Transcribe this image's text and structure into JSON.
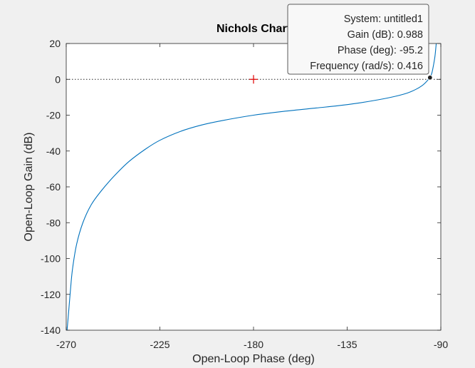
{
  "chart_data": {
    "type": "line",
    "title": "Nichols Chart",
    "xlabel": "Open-Loop Phase (deg)",
    "ylabel": "Open-Loop Gain (dB)",
    "xlim": [
      -270,
      -90
    ],
    "ylim": [
      -140,
      20
    ],
    "xticks": [
      -270,
      -225,
      -180,
      -135,
      -90
    ],
    "yticks": [
      20,
      0,
      -20,
      -40,
      -60,
      -80,
      -100,
      -120,
      -140
    ],
    "grid": false,
    "series": [
      {
        "color": "#0072bd",
        "x": [
          -269.6,
          -269.0,
          -268.0,
          -267.0,
          -265.0,
          -262.0,
          -258.0,
          -253.0,
          -247.0,
          -240.0,
          -232.0,
          -225.0,
          -215.0,
          -205.0,
          -195.0,
          -180.0,
          -165.0,
          -150.0,
          -140.0,
          -130.0,
          -120.0,
          -112.0,
          -106.0,
          -102.0,
          -99.0,
          -97.0,
          -95.8,
          -95.2,
          -94.3,
          -93.5,
          -92.8,
          -92.2
        ],
        "y": [
          -140,
          -132,
          -118,
          -106,
          -92,
          -80,
          -70,
          -62,
          -54,
          -46,
          -39,
          -34,
          -29,
          -25.5,
          -23,
          -20,
          -17.8,
          -16,
          -14.8,
          -13.3,
          -11.4,
          -9.5,
          -7.6,
          -5.6,
          -3.5,
          -1.4,
          0.2,
          0.988,
          3.5,
          8,
          13,
          20
        ]
      }
    ],
    "critical_point": {
      "x": -180,
      "y": 0,
      "marker": "+",
      "color": "#e00000"
    },
    "zero_db_line": {
      "y": 0,
      "style": "dotted"
    },
    "datatip": {
      "x": -95.2,
      "y": 0.988,
      "lines": [
        "System: untitled1",
        "Gain (dB): 0.988",
        "Phase (deg): -95.2",
        "Frequency (rad/s): 0.416"
      ]
    }
  }
}
